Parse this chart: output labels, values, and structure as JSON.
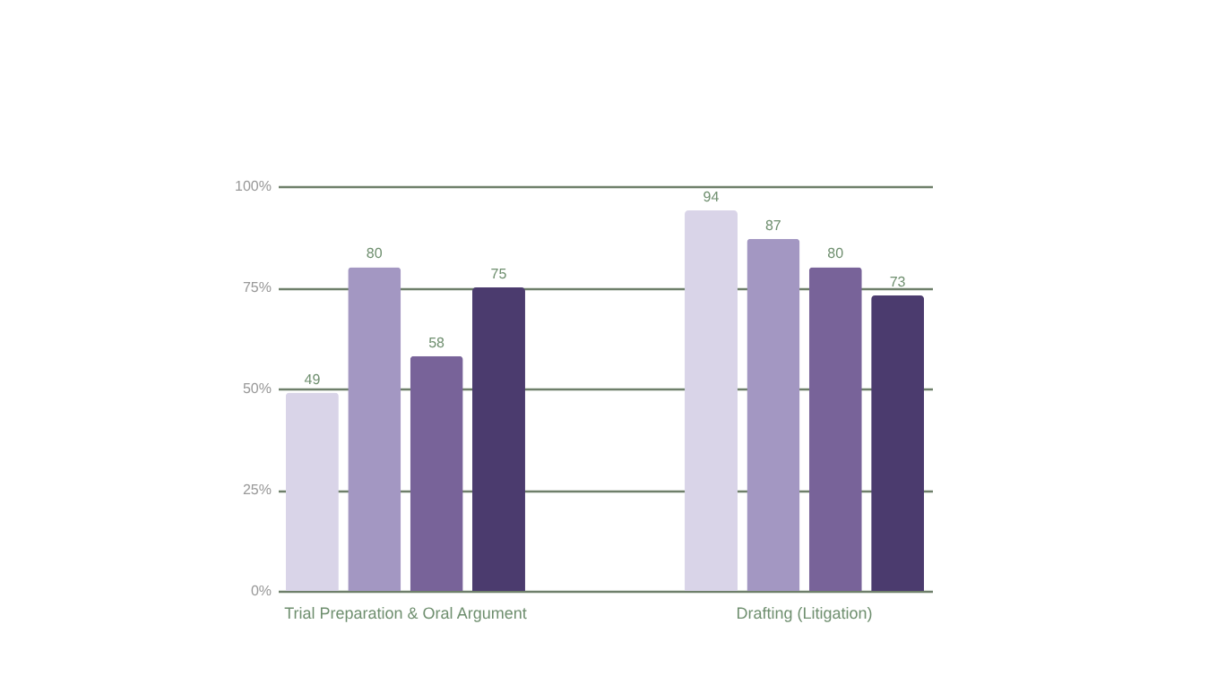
{
  "chart_data": {
    "type": "bar",
    "categories": [
      "Trial Preparation & Oral Argument",
      "Drafting (Litigation)"
    ],
    "series": [
      {
        "color": "#d9d4e8",
        "values": [
          49,
          94
        ]
      },
      {
        "color": "#a397c2",
        "values": [
          80,
          87
        ]
      },
      {
        "color": "#786399",
        "values": [
          58,
          80
        ]
      },
      {
        "color": "#4b3b6e",
        "values": [
          75,
          73
        ]
      }
    ],
    "ylim": [
      0,
      100
    ],
    "yticks": [
      {
        "value": 0,
        "label": "0%"
      },
      {
        "value": 25,
        "label": "25%"
      },
      {
        "value": 50,
        "label": "50%"
      },
      {
        "value": 75,
        "label": "75%"
      },
      {
        "value": 100,
        "label": "100%"
      }
    ],
    "grid": "y",
    "data_labels": true
  }
}
